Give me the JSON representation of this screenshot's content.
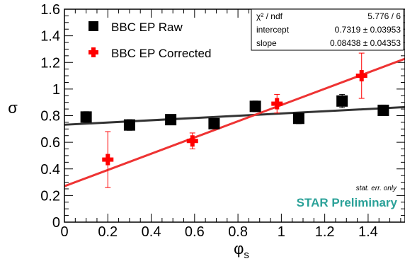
{
  "chart_data": {
    "type": "scatter",
    "xlabel": "φ",
    "xlabel_sub": "s",
    "ylabel": "σ",
    "xlim": [
      0,
      1.57
    ],
    "ylim": [
      0,
      1.6
    ],
    "x_ticks": [
      0,
      0.2,
      0.4,
      0.6,
      0.8,
      1,
      1.2,
      1.4
    ],
    "x_tick_labels": [
      "0",
      "0.2",
      "0.4",
      "0.6",
      "0.8",
      "1",
      "1.2",
      "1.4"
    ],
    "y_ticks": [
      0,
      0.2,
      0.4,
      0.6,
      0.8,
      1,
      1.2,
      1.4,
      1.6
    ],
    "y_tick_labels": [
      "0",
      "0.2",
      "0.4",
      "0.6",
      "0.8",
      "1",
      "1.2",
      "1.4",
      "1.6"
    ],
    "legend_position": "top-left",
    "series": [
      {
        "name": "BBC EP Raw",
        "color": "#000000",
        "marker": "square",
        "points": [
          {
            "x": 0.1,
            "y": 0.79,
            "err": 0.04
          },
          {
            "x": 0.3,
            "y": 0.73,
            "err": 0.04
          },
          {
            "x": 0.49,
            "y": 0.77,
            "err": 0.03
          },
          {
            "x": 0.69,
            "y": 0.74,
            "err": 0.03
          },
          {
            "x": 0.88,
            "y": 0.87,
            "err": 0.04
          },
          {
            "x": 1.08,
            "y": 0.78,
            "err": 0.04
          },
          {
            "x": 1.28,
            "y": 0.91,
            "err": 0.05
          },
          {
            "x": 1.47,
            "y": 0.84,
            "err": 0.04
          }
        ]
      },
      {
        "name": "BBC EP Corrected",
        "color": "#ff0000",
        "marker": "cross",
        "points": [
          {
            "x": 0.2,
            "y": 0.47,
            "err": 0.21
          },
          {
            "x": 0.59,
            "y": 0.61,
            "err": 0.06
          },
          {
            "x": 0.98,
            "y": 0.89,
            "err": 0.07
          },
          {
            "x": 1.37,
            "y": 1.1,
            "err": 0.17
          }
        ]
      }
    ],
    "fits": [
      {
        "color": "#333333",
        "intercept": 0.7319,
        "slope": 0.08438
      },
      {
        "color": "#ee3333",
        "intercept": 0.27,
        "slope": 0.61
      }
    ],
    "stats_box": {
      "rows": [
        {
          "label": "χ² / ndf",
          "value": "5.776 / 6"
        },
        {
          "label": "intercept",
          "value": "0.7319 ± 0.03953"
        },
        {
          "label": "slope",
          "value": "0.08438 ± 0.04353"
        }
      ]
    },
    "annotations": {
      "note": "stat. err. only",
      "preliminary": "STAR Preliminary",
      "preliminary_color": "#2aa198"
    }
  }
}
